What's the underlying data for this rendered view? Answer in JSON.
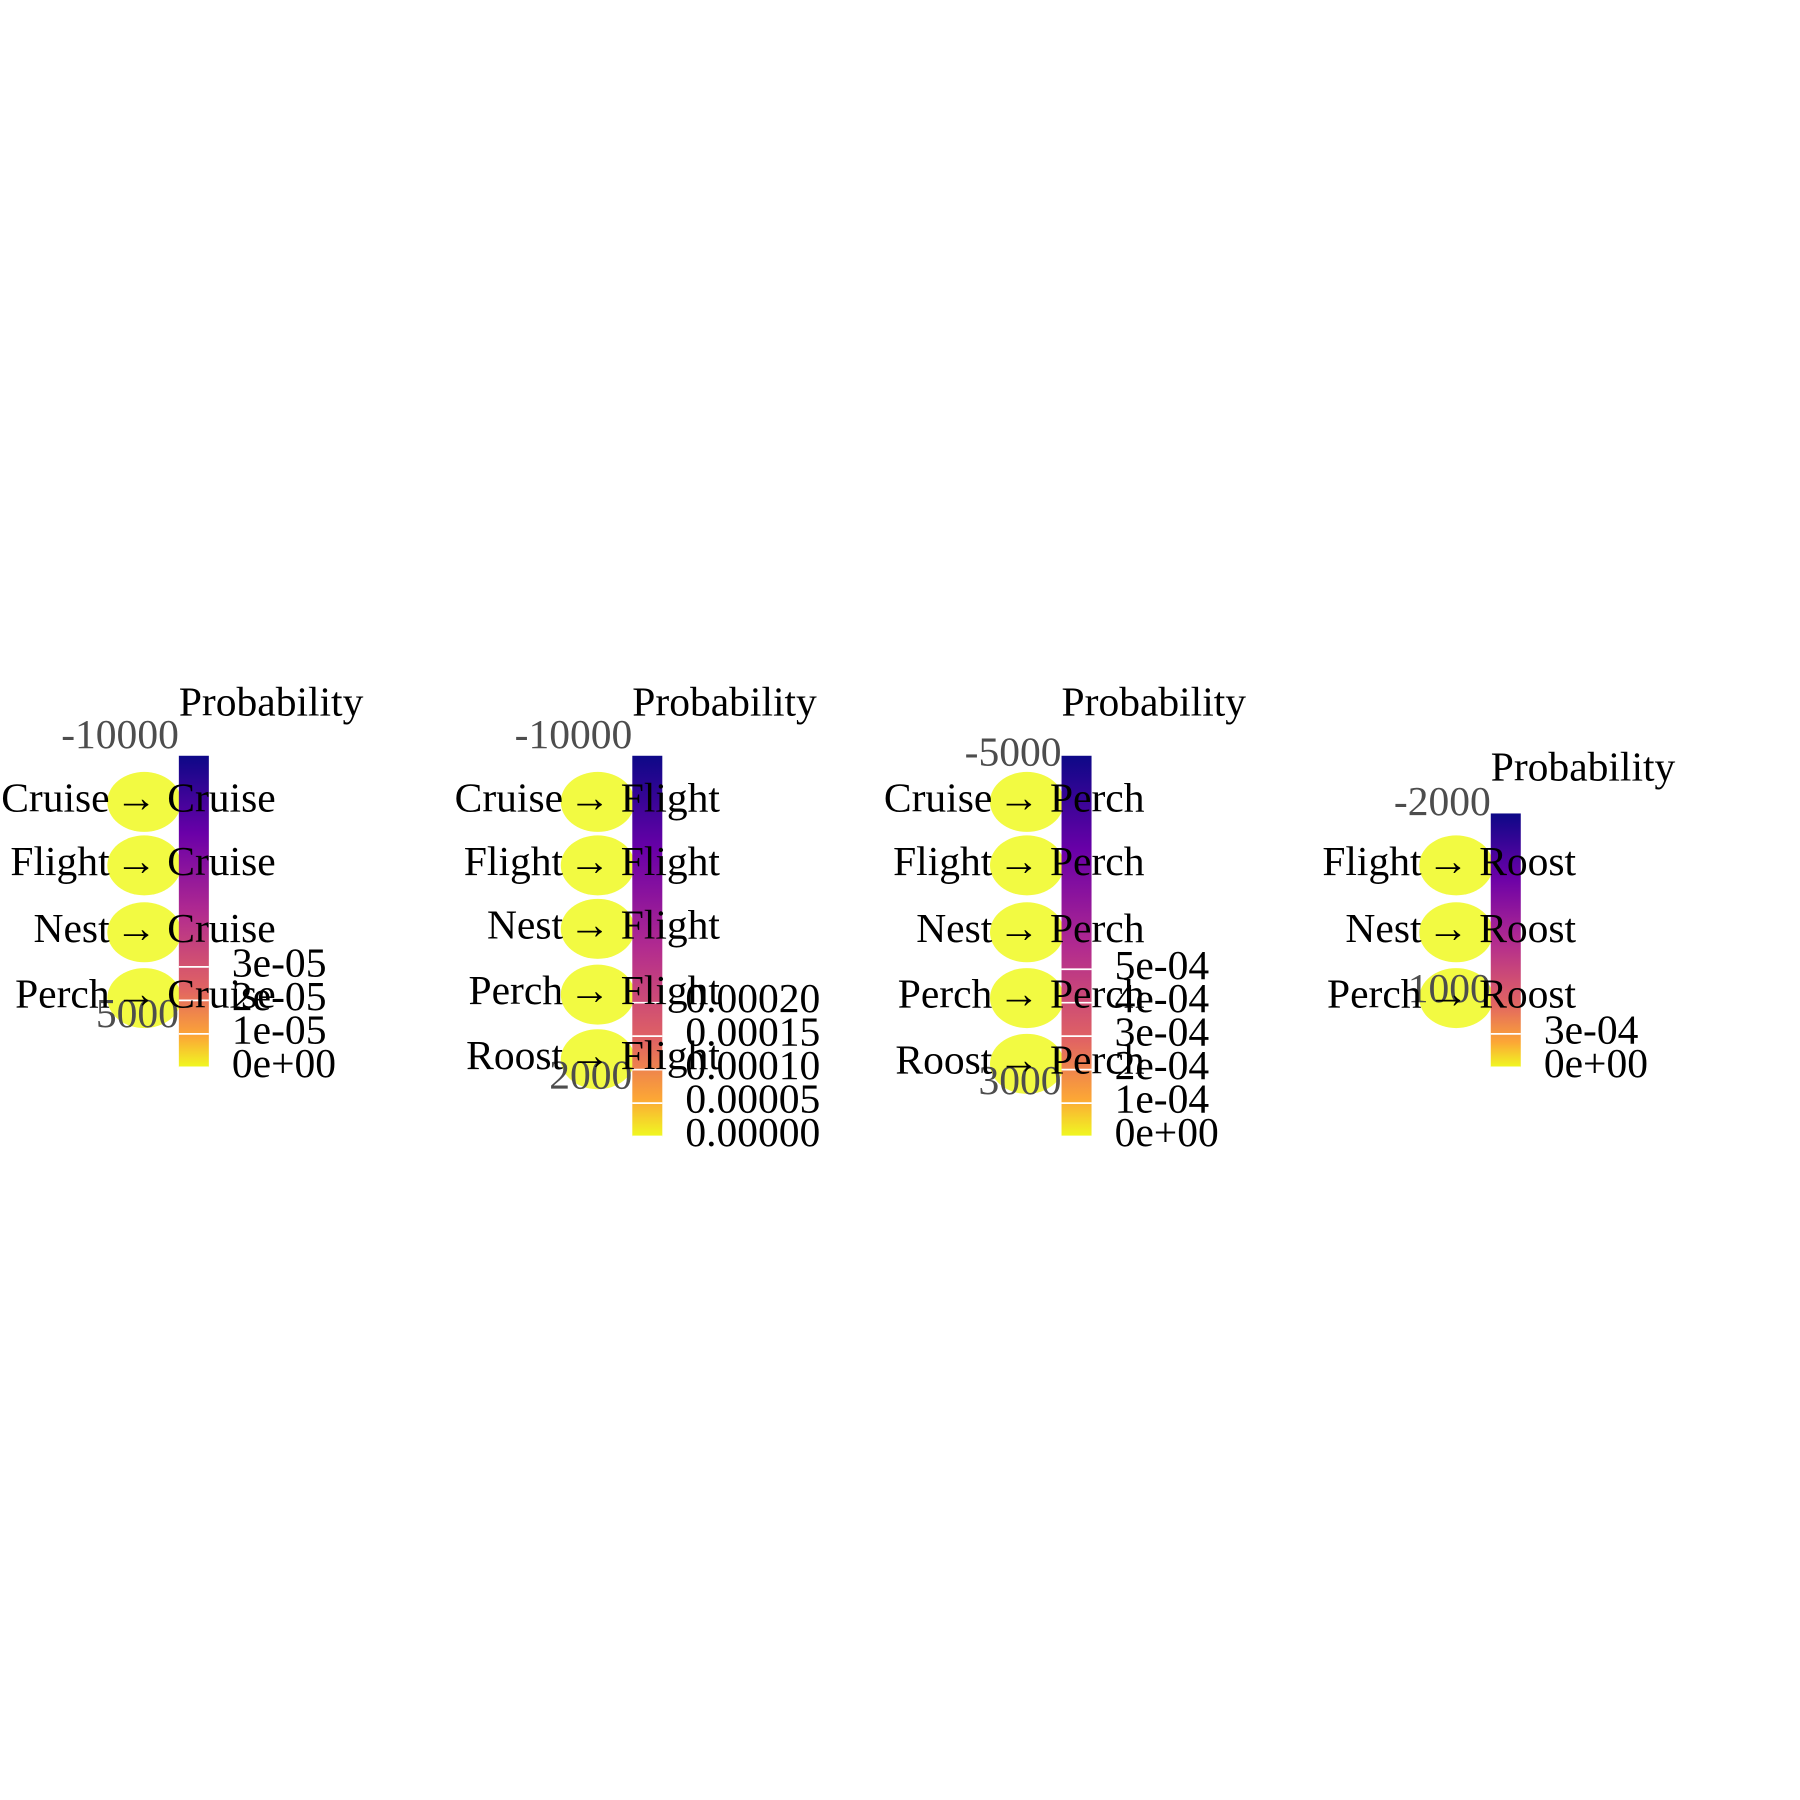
{
  "panels": [
    {
      "title": "Probability",
      "target": "→ Cruise",
      "rows": [
        "Cruise",
        "Flight",
        "Nest",
        "Perch"
      ],
      "axis_labels": [
        "-10000",
        "5000"
      ],
      "legend_ticks": [
        "3e-05",
        "2e-05",
        "1e-05",
        "0e+00"
      ]
    },
    {
      "title": "Probability",
      "target": "→ Flight",
      "rows": [
        "Cruise",
        "Flight",
        "Nest",
        "Perch",
        "Roost"
      ],
      "axis_labels": [
        "-10000",
        "2000"
      ],
      "legend_ticks": [
        "0.00020",
        "0.00015",
        "0.00010",
        "0.00005",
        "0.00000"
      ]
    },
    {
      "title": "Probability",
      "target": "→ Perch",
      "rows": [
        "Cruise",
        "Flight",
        "Nest",
        "Perch",
        "Roost"
      ],
      "axis_labels": [
        "-5000",
        "3000"
      ],
      "legend_ticks": [
        "5e-04",
        "4e-04",
        "3e-04",
        "2e-04",
        "1e-04",
        "0e+00"
      ]
    },
    {
      "title": "Probability",
      "target": "→ Roost",
      "rows": [
        "Flight",
        "Nest",
        "Perch"
      ],
      "axis_labels": [
        "-2000",
        "1000"
      ],
      "legend_ticks": [
        "3e-04",
        "0e+00"
      ]
    }
  ]
}
